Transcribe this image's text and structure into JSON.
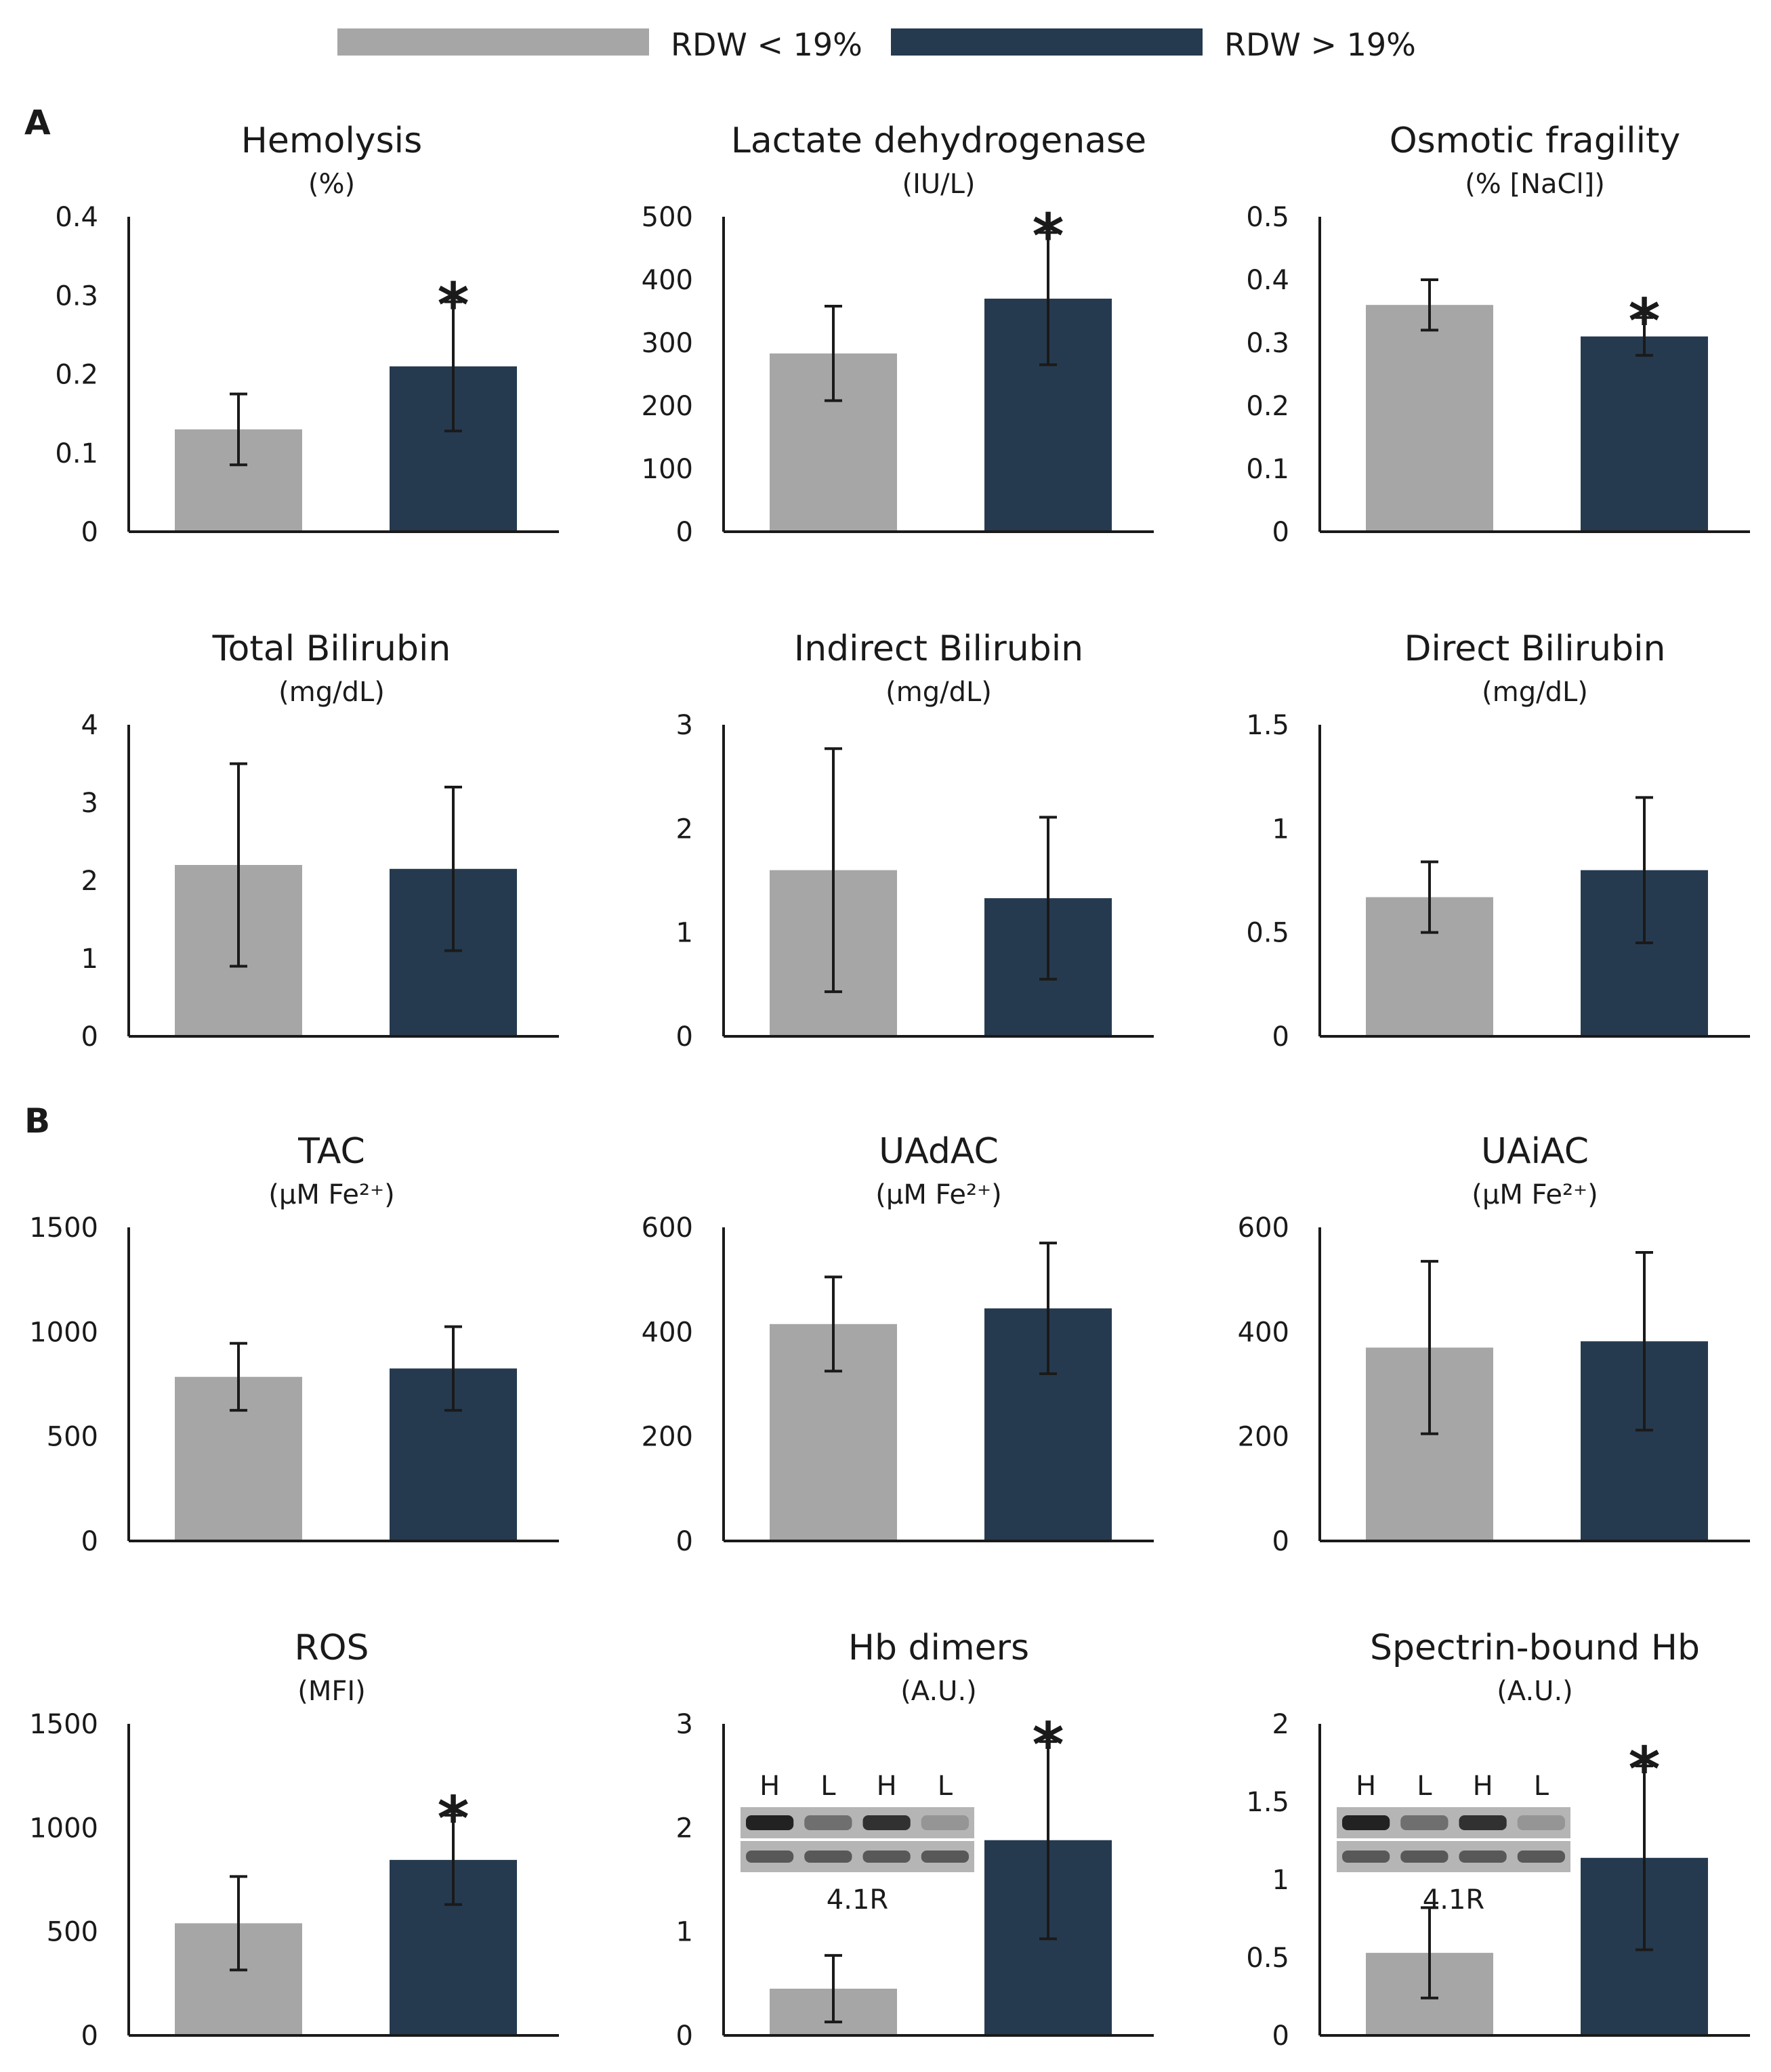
{
  "colors": {
    "low_rdw": "#a6a6a6",
    "high_rdw": "#263a4f",
    "axis": "#1a1a1a",
    "text": "#1a1a1a"
  },
  "legend": [
    {
      "label": "RDW < 19%",
      "color": "#a6a6a6"
    },
    {
      "label": "RDW > 19%",
      "color": "#263a4f"
    }
  ],
  "panels": [
    {
      "letter": "A"
    },
    {
      "letter": "B"
    }
  ],
  "chart_data": [
    {
      "type": "bar",
      "title": "Hemolysis",
      "unit": "(%)",
      "categories": [
        "RDW < 19%",
        "RDW > 19%"
      ],
      "values": [
        0.13,
        0.21
      ],
      "errors": [
        0.045,
        0.082
      ],
      "significant": [
        false,
        true
      ],
      "ylim": [
        0,
        0.4
      ],
      "yticks": [
        0,
        0.1,
        0.2,
        0.3,
        0.4
      ],
      "ytick_labels": [
        "0",
        "0.1",
        "0.2",
        "0.3",
        "0.4"
      ]
    },
    {
      "type": "bar",
      "title": "Lactate dehydrogenase",
      "unit": "(IU/L)",
      "categories": [
        "RDW < 19%",
        "RDW > 19%"
      ],
      "values": [
        283,
        370
      ],
      "errors": [
        75,
        105
      ],
      "significant": [
        false,
        true
      ],
      "ylim": [
        0,
        500
      ],
      "yticks": [
        0,
        100,
        200,
        300,
        400,
        500
      ],
      "ytick_labels": [
        "0",
        "100",
        "200",
        "300",
        "400",
        "500"
      ]
    },
    {
      "type": "bar",
      "title": "Osmotic fragility",
      "unit": "(% [NaCl])",
      "categories": [
        "RDW < 19%",
        "RDW > 19%"
      ],
      "values": [
        0.36,
        0.31
      ],
      "errors": [
        0.04,
        0.03
      ],
      "significant": [
        false,
        true
      ],
      "ylim": [
        0,
        0.5
      ],
      "yticks": [
        0,
        0.1,
        0.2,
        0.3,
        0.4,
        0.5
      ],
      "ytick_labels": [
        "0",
        "0.1",
        "0.2",
        "0.3",
        "0.4",
        "0.5"
      ]
    },
    {
      "type": "bar",
      "title": "Total Bilirubin",
      "unit": "(mg/dL)",
      "categories": [
        "RDW < 19%",
        "RDW > 19%"
      ],
      "values": [
        2.2,
        2.15
      ],
      "errors": [
        1.3,
        1.05
      ],
      "significant": [
        false,
        false
      ],
      "ylim": [
        0,
        4
      ],
      "yticks": [
        0,
        1,
        2,
        3,
        4
      ],
      "ytick_labels": [
        "0",
        "1",
        "2",
        "3",
        "4"
      ]
    },
    {
      "type": "bar",
      "title": "Indirect Bilirubin",
      "unit": "(mg/dL)",
      "categories": [
        "RDW < 19%",
        "RDW > 19%"
      ],
      "values": [
        1.6,
        1.33
      ],
      "errors": [
        1.17,
        0.78
      ],
      "significant": [
        false,
        false
      ],
      "ylim": [
        0,
        3
      ],
      "yticks": [
        0,
        1,
        2,
        3
      ],
      "ytick_labels": [
        "0",
        "1",
        "2",
        "3"
      ]
    },
    {
      "type": "bar",
      "title": "Direct Bilirubin",
      "unit": "(mg/dL)",
      "categories": [
        "RDW < 19%",
        "RDW > 19%"
      ],
      "values": [
        0.67,
        0.8
      ],
      "errors": [
        0.17,
        0.35
      ],
      "significant": [
        false,
        false
      ],
      "ylim": [
        0,
        1.5
      ],
      "yticks": [
        0,
        0.5,
        1,
        1.5
      ],
      "ytick_labels": [
        "0",
        "0.5",
        "1",
        "1.5"
      ]
    },
    {
      "type": "bar",
      "title": "TAC",
      "unit": "(μM Fe²⁺)",
      "categories": [
        "RDW < 19%",
        "RDW > 19%"
      ],
      "values": [
        785,
        825
      ],
      "errors": [
        160,
        200
      ],
      "significant": [
        false,
        false
      ],
      "ylim": [
        0,
        1500
      ],
      "yticks": [
        0,
        500,
        1000,
        1500
      ],
      "ytick_labels": [
        "0",
        "500",
        "1000",
        "1500"
      ]
    },
    {
      "type": "bar",
      "title": "UAdAC",
      "unit": "(μM Fe²⁺)",
      "categories": [
        "RDW < 19%",
        "RDW > 19%"
      ],
      "values": [
        415,
        445
      ],
      "errors": [
        90,
        125
      ],
      "significant": [
        false,
        false
      ],
      "ylim": [
        0,
        600
      ],
      "yticks": [
        0,
        200,
        400,
        600
      ],
      "ytick_labels": [
        "0",
        "200",
        "400",
        "600"
      ]
    },
    {
      "type": "bar",
      "title": "UAiAC",
      "unit": "(μM Fe²⁺)",
      "categories": [
        "RDW < 19%",
        "RDW > 19%"
      ],
      "values": [
        370,
        382
      ],
      "errors": [
        165,
        170
      ],
      "significant": [
        false,
        false
      ],
      "ylim": [
        0,
        600
      ],
      "yticks": [
        0,
        200,
        400,
        600
      ],
      "ytick_labels": [
        "0",
        "200",
        "400",
        "600"
      ]
    },
    {
      "type": "bar",
      "title": "ROS",
      "unit": "(MFI)",
      "categories": [
        "RDW < 19%",
        "RDW > 19%"
      ],
      "values": [
        540,
        845
      ],
      "errors": [
        225,
        215
      ],
      "significant": [
        false,
        true
      ],
      "ylim": [
        0,
        1500
      ],
      "yticks": [
        0,
        500,
        1000,
        1500
      ],
      "ytick_labels": [
        "0",
        "500",
        "1000",
        "1500"
      ]
    },
    {
      "type": "bar",
      "title": "Hb dimers",
      "unit": "(A.U.)",
      "categories": [
        "RDW < 19%",
        "RDW > 19%"
      ],
      "values": [
        0.45,
        1.88
      ],
      "errors": [
        0.32,
        0.95
      ],
      "significant": [
        false,
        true
      ],
      "ylim": [
        0,
        3
      ],
      "yticks": [
        0,
        1,
        2,
        3
      ],
      "ytick_labels": [
        "0",
        "1",
        "2",
        "3"
      ],
      "blot": {
        "lanes": [
          "H",
          "L",
          "H",
          "L"
        ],
        "caption": "4.1R"
      }
    },
    {
      "type": "bar",
      "title": "Spectrin-bound Hb",
      "unit": "(A.U.)",
      "categories": [
        "RDW < 19%",
        "RDW > 19%"
      ],
      "values": [
        0.53,
        1.14
      ],
      "errors": [
        0.29,
        0.59
      ],
      "significant": [
        false,
        true
      ],
      "ylim": [
        0,
        2
      ],
      "yticks": [
        0,
        0.5,
        1,
        1.5,
        2
      ],
      "ytick_labels": [
        "0",
        "0.5",
        "1",
        "1.5",
        "2"
      ],
      "blot": {
        "lanes": [
          "H",
          "L",
          "H",
          "L"
        ],
        "caption": "4.1R"
      }
    }
  ]
}
